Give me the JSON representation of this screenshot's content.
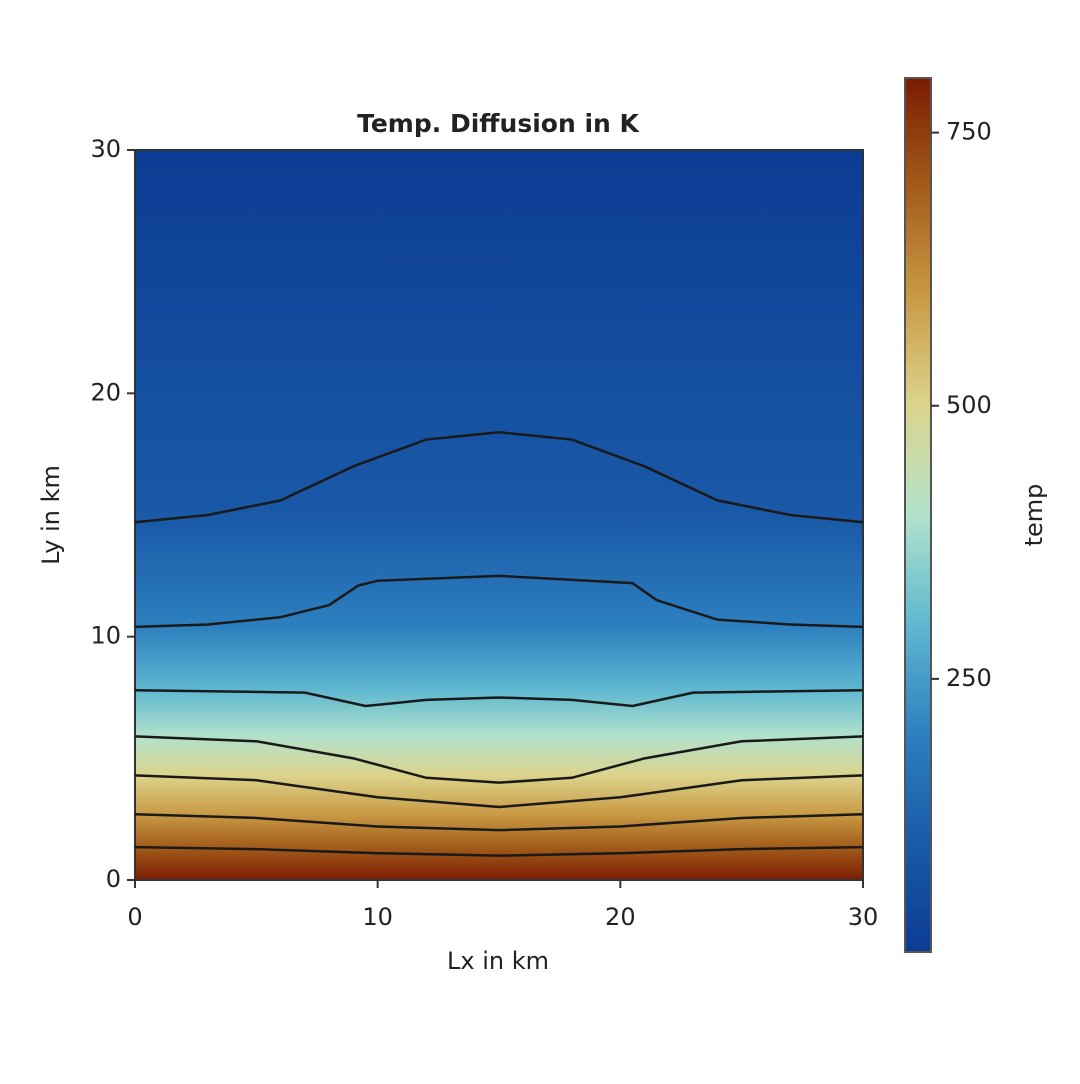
{
  "chart_data": {
    "type": "contour",
    "title": "Temp. Diffusion in K",
    "x_label": "Lx in km",
    "y_label": "Ly in km",
    "xlim": [
      0,
      30
    ],
    "ylim": [
      0,
      30
    ],
    "xticks": [
      0,
      10,
      20,
      30
    ],
    "yticks": [
      0,
      10,
      20,
      30
    ],
    "colorbar": {
      "label": "temp",
      "clim": [
        0,
        800
      ],
      "ticks": [
        250,
        500,
        750
      ]
    },
    "colormap": [
      "#0b3c93",
      "#1a5aa8",
      "#2d80bf",
      "#5fb8d0",
      "#b2e2cc",
      "#dcd48c",
      "#c99a45",
      "#a35c1a",
      "#7b1c02"
    ],
    "line_color": "#1a1a1a",
    "contours": [
      {
        "level": 100,
        "x": [
          0,
          3,
          6,
          9,
          12,
          15,
          18,
          21,
          24,
          27,
          30
        ],
        "y": [
          14.7,
          15.0,
          15.6,
          17.0,
          18.1,
          18.4,
          18.1,
          17.0,
          15.6,
          15.0,
          14.7
        ]
      },
      {
        "level": 200,
        "x": [
          0,
          3,
          6,
          8,
          9.2,
          10,
          15,
          20.5,
          21.5,
          24,
          27,
          30
        ],
        "y": [
          10.4,
          10.5,
          10.8,
          11.3,
          12.1,
          12.3,
          12.5,
          12.2,
          11.5,
          10.7,
          10.5,
          10.4
        ]
      },
      {
        "level": 300,
        "x": [
          0,
          7,
          9.5,
          12,
          15,
          18,
          20.5,
          23,
          30
        ],
        "y": [
          7.8,
          7.7,
          7.15,
          7.4,
          7.5,
          7.4,
          7.15,
          7.7,
          7.8
        ]
      },
      {
        "level": 400,
        "x": [
          0,
          5,
          9,
          12,
          15,
          18,
          21,
          25,
          30
        ],
        "y": [
          5.9,
          5.7,
          5.0,
          4.2,
          4.0,
          4.2,
          5.0,
          5.7,
          5.9
        ]
      },
      {
        "level": 500,
        "x": [
          0,
          5,
          10,
          15,
          20,
          25,
          30
        ],
        "y": [
          4.3,
          4.1,
          3.4,
          3.0,
          3.4,
          4.1,
          4.3
        ]
      },
      {
        "level": 600,
        "x": [
          0,
          5,
          10,
          15,
          20,
          25,
          30
        ],
        "y": [
          2.7,
          2.55,
          2.2,
          2.05,
          2.2,
          2.55,
          2.7
        ]
      },
      {
        "level": 700,
        "x": [
          0,
          5,
          10,
          15,
          20,
          25,
          30
        ],
        "y": [
          1.35,
          1.27,
          1.1,
          1.0,
          1.1,
          1.27,
          1.35
        ]
      }
    ]
  }
}
